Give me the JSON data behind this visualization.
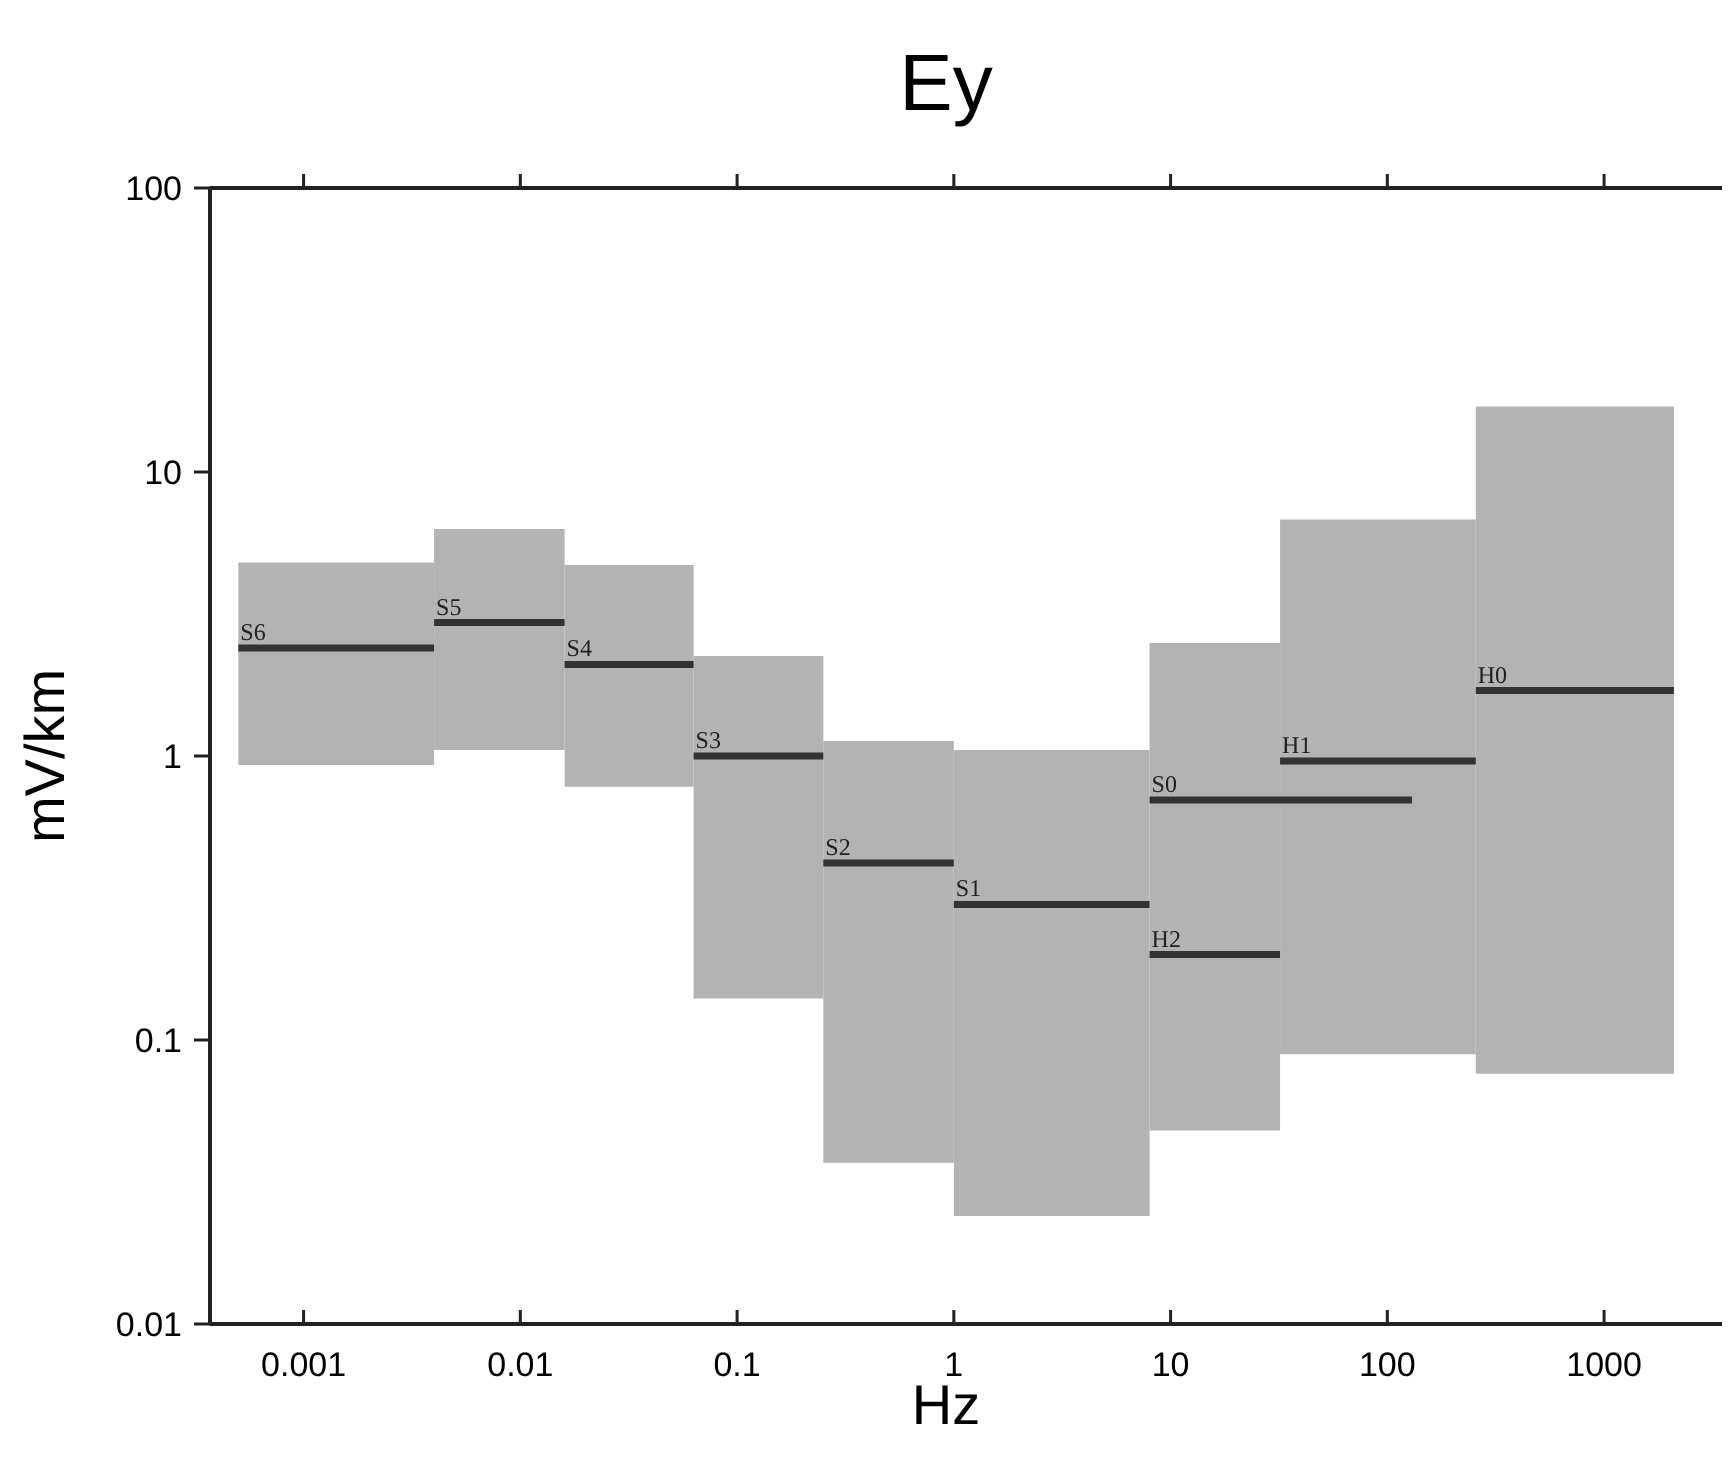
{
  "chart_data": {
    "type": "line",
    "title": "Ey",
    "xlabel": "Hz",
    "ylabel": "mV/km",
    "log": "xy",
    "grid": false,
    "xlim": [
      0.00037,
      3500
    ],
    "ylim": [
      0.01,
      100
    ],
    "xticks": [
      0.001,
      0.01,
      0.1,
      1,
      10,
      100,
      1000
    ],
    "yticks": [
      0.01,
      0.1,
      1,
      10,
      100
    ],
    "series": [
      {
        "name": "S6",
        "color": "#333333",
        "x": [
          0.0005,
          0.004
        ],
        "values": [
          2.4,
          2.4
        ],
        "lower": [
          0.93,
          0.93
        ],
        "upper": [
          4.8,
          4.8
        ]
      },
      {
        "name": "S5",
        "color": "#333333",
        "x": [
          0.004,
          0.016
        ],
        "values": [
          2.95,
          2.95
        ],
        "lower": [
          1.05,
          1.05
        ],
        "upper": [
          6.3,
          6.3
        ]
      },
      {
        "name": "S4",
        "color": "#333333",
        "x": [
          0.016,
          0.063
        ],
        "values": [
          2.1,
          2.1
        ],
        "lower": [
          0.78,
          0.78
        ],
        "upper": [
          4.7,
          4.7
        ]
      },
      {
        "name": "S3",
        "color": "#333333",
        "x": [
          0.063,
          0.25
        ],
        "values": [
          1.0,
          1.0
        ],
        "lower": [
          0.14,
          0.14
        ],
        "upper": [
          2.25,
          2.25
        ]
      },
      {
        "name": "S2",
        "color": "#333333",
        "x": [
          0.25,
          1
        ],
        "values": [
          0.42,
          0.42
        ],
        "lower": [
          0.037,
          0.037
        ],
        "upper": [
          1.13,
          1.13
        ]
      },
      {
        "name": "S1",
        "color": "#333333",
        "x": [
          1,
          8
        ],
        "values": [
          0.3,
          0.3
        ],
        "lower": [
          0.024,
          0.024
        ],
        "upper": [
          1.05,
          1.05
        ]
      },
      {
        "name": "H2",
        "color": "#333333",
        "x": [
          8,
          32
        ],
        "values": [
          0.2,
          0.2
        ],
        "lower": [
          0.048,
          0.048
        ],
        "upper": [
          2.5,
          2.5
        ]
      },
      {
        "name": "S0",
        "color": "#333333",
        "x": [
          8,
          130
        ],
        "values": [
          0.7,
          0.7
        ]
      },
      {
        "name": "H1",
        "color": "#333333",
        "x": [
          32,
          256
        ],
        "values": [
          0.96,
          0.96
        ],
        "lower": [
          0.089,
          0.089
        ],
        "upper": [
          6.8,
          6.8
        ]
      },
      {
        "name": "H0",
        "color": "#333333",
        "x": [
          256,
          2100
        ],
        "values": [
          1.7,
          1.7
        ],
        "lower": [
          0.076,
          0.076
        ],
        "upper": [
          17,
          17
        ]
      }
    ]
  }
}
